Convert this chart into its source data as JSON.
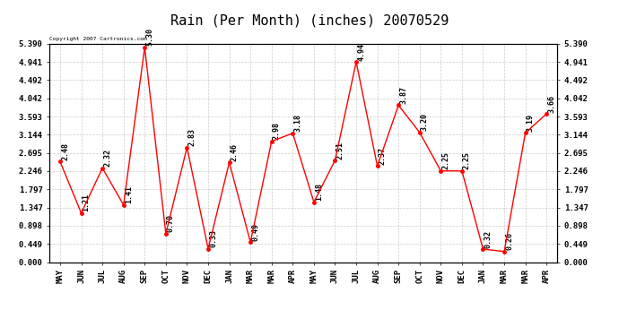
{
  "title": "Rain (Per Month) (inches) 20070529",
  "categories": [
    "MAY",
    "JUN",
    "JUL",
    "AUG",
    "SEP",
    "OCT",
    "NOV",
    "DEC",
    "JAN",
    "MAR",
    "MAR",
    "APR",
    "MAY",
    "JUN",
    "JUL",
    "AUG",
    "SEP",
    "OCT",
    "NOV",
    "DEC",
    "JAN",
    "MAR",
    "MAR",
    "APR"
  ],
  "values": [
    2.48,
    1.21,
    2.32,
    1.41,
    5.3,
    0.7,
    2.83,
    0.33,
    2.46,
    0.49,
    2.98,
    3.18,
    1.48,
    2.51,
    4.94,
    2.37,
    3.87,
    3.2,
    2.25,
    2.25,
    0.32,
    0.26,
    3.19,
    3.66
  ],
  "ylim": [
    0.0,
    5.39
  ],
  "yticks": [
    0.0,
    0.449,
    0.898,
    1.347,
    1.797,
    2.246,
    2.695,
    3.144,
    3.593,
    4.042,
    4.492,
    4.941,
    5.39
  ],
  "line_color": "#FF0000",
  "marker_color": "#FF0000",
  "bg_color": "#FFFFFF",
  "grid_color": "#CCCCCC",
  "copyright_text": "Copyright 2007 Cartronics.com",
  "title_fontsize": 11,
  "tick_fontsize": 6.5,
  "annotation_fontsize": 6.0
}
